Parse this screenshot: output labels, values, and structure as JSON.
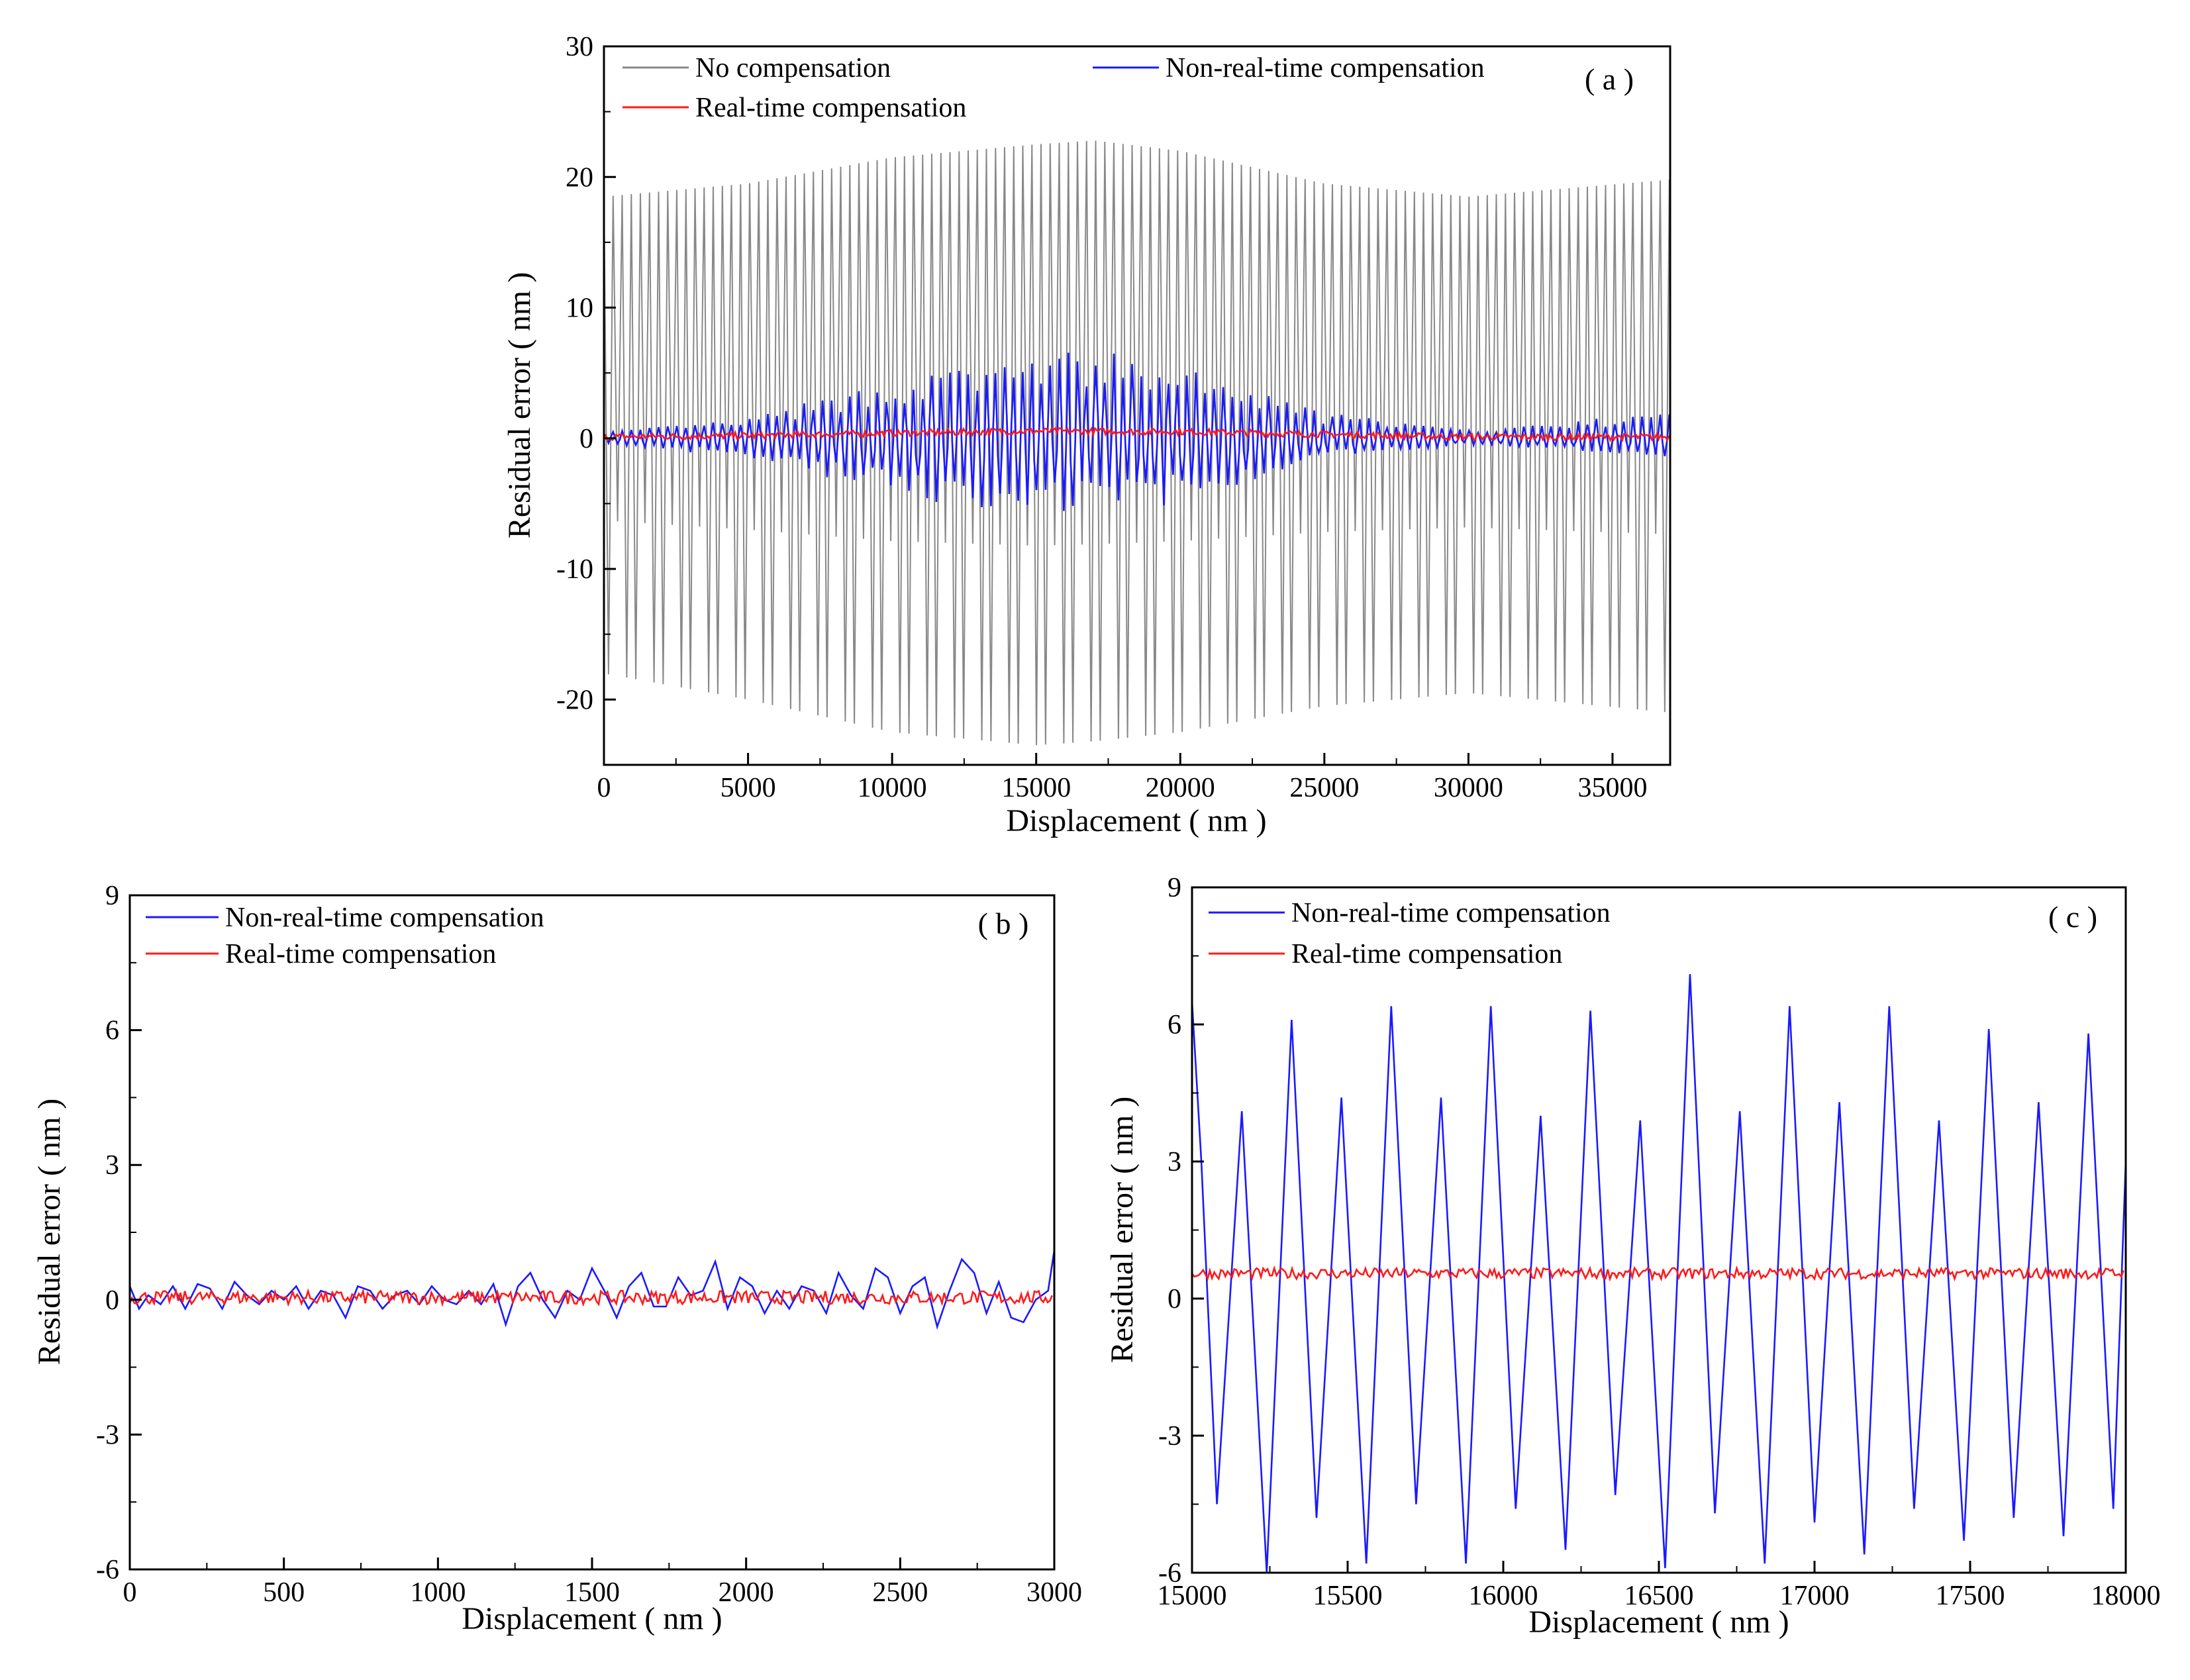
{
  "chart_data": [
    {
      "panel": "( a )",
      "type": "line",
      "xlabel": "Displacement ( nm )",
      "ylabel": "Residual error ( nm )",
      "xlim": [
        0,
        37000
      ],
      "ylim": [
        -25,
        30
      ],
      "xticks": [
        0,
        5000,
        10000,
        15000,
        20000,
        25000,
        30000,
        35000
      ],
      "xtick_labels": [
        "0",
        "5000",
        "10000",
        "15000",
        "20000",
        "25000",
        "30000",
        "35000"
      ],
      "yticks": [
        -20,
        -10,
        0,
        10,
        20,
        30
      ],
      "ytick_labels": [
        "-20",
        "-10",
        "0",
        "10",
        "20",
        "30"
      ],
      "legend": [
        {
          "name": "No compensation",
          "color": "#888888"
        },
        {
          "name": "Non-real-time compensation",
          "color": "#1a1aff"
        },
        {
          "name": "Real-time compensation",
          "color": "#ff1a1a"
        }
      ],
      "series": [
        {
          "name": "No compensation",
          "color": "#888888",
          "period_nm": 316,
          "envelope_x": [
            0,
            5000,
            10000,
            15000,
            17000,
            20000,
            25000,
            30000,
            37000
          ],
          "upper": [
            18.5,
            19.5,
            21.5,
            22.5,
            22.8,
            22.0,
            19.5,
            18.5,
            19.8
          ],
          "lower": [
            -18,
            -20,
            -22.5,
            -23.5,
            -23.2,
            -22.5,
            -20.5,
            -19.5,
            -21
          ]
        },
        {
          "name": "Non-real-time compensation",
          "color": "#1a1aff",
          "period_nm": 316,
          "envelope_x": [
            0,
            5000,
            10000,
            15000,
            17000,
            20000,
            25000,
            30000,
            37000
          ],
          "upper": [
            0.5,
            1.5,
            4.5,
            6.5,
            6.8,
            5.5,
            2.0,
            0.6,
            2.0
          ],
          "lower": [
            -0.5,
            -1.5,
            -4.5,
            -5.8,
            -5.8,
            -5.0,
            -1.5,
            -0.5,
            -1.5
          ]
        },
        {
          "name": "Real-time compensation",
          "color": "#ff1a1a",
          "x": [
            0,
            5000,
            10000,
            15000,
            20000,
            25000,
            30000,
            37000
          ],
          "y": [
            0.1,
            0.2,
            0.4,
            0.55,
            0.5,
            0.3,
            0.1,
            0.1
          ]
        }
      ]
    },
    {
      "panel": "( b )",
      "type": "line",
      "xlabel": "Displacement ( nm )",
      "ylabel": "Residual error ( nm )",
      "xlim": [
        0,
        3000
      ],
      "ylim": [
        -6,
        9
      ],
      "xticks": [
        0,
        500,
        1000,
        1500,
        2000,
        2500,
        3000
      ],
      "xtick_labels": [
        "0",
        "500",
        "1000",
        "1500",
        "2000",
        "2500",
        "3000"
      ],
      "yticks": [
        -6,
        -3,
        0,
        3,
        6,
        9
      ],
      "ytick_labels": [
        "-6",
        "-3",
        "0",
        "3",
        "6",
        "9"
      ],
      "legend": [
        {
          "name": "Non-real-time compensation",
          "color": "#1a1aff"
        },
        {
          "name": "Real-time compensation",
          "color": "#ff1a1a"
        }
      ],
      "series": [
        {
          "name": "Non-real-time compensation",
          "color": "#1a1aff",
          "x": [
            0,
            30,
            60,
            100,
            140,
            180,
            220,
            260,
            300,
            340,
            380,
            420,
            460,
            500,
            540,
            580,
            620,
            660,
            700,
            740,
            780,
            820,
            860,
            900,
            940,
            980,
            1020,
            1060,
            1100,
            1140,
            1180,
            1220,
            1260,
            1300,
            1340,
            1380,
            1420,
            1460,
            1500,
            1540,
            1580,
            1620,
            1660,
            1700,
            1740,
            1780,
            1820,
            1860,
            1900,
            1940,
            1980,
            2020,
            2060,
            2100,
            2140,
            2180,
            2220,
            2260,
            2300,
            2340,
            2380,
            2420,
            2460,
            2500,
            2540,
            2580,
            2620,
            2660,
            2700,
            2740,
            2780,
            2820,
            2860,
            2900,
            2940,
            2980,
            3000
          ],
          "y": [
            0.3,
            -0.2,
            0.1,
            -0.1,
            0.3,
            -0.2,
            0.35,
            0.25,
            -0.2,
            0.4,
            0.1,
            -0.1,
            0.2,
            0.0,
            0.3,
            -0.2,
            0.2,
            0.1,
            -0.4,
            0.3,
            0.2,
            -0.2,
            0.1,
            0.2,
            -0.1,
            0.3,
            0.0,
            -0.1,
            0.2,
            -0.1,
            0.35,
            -0.55,
            0.3,
            0.6,
            0.0,
            -0.4,
            0.2,
            0.0,
            0.7,
            0.2,
            -0.4,
            0.3,
            0.6,
            -0.15,
            -0.15,
            0.5,
            0.1,
            0.2,
            0.85,
            -0.2,
            0.5,
            0.3,
            -0.3,
            0.2,
            -0.2,
            0.3,
            0.2,
            -0.3,
            0.6,
            0.1,
            -0.2,
            0.7,
            0.5,
            -0.3,
            0.3,
            0.5,
            -0.6,
            0.2,
            0.9,
            0.6,
            -0.3,
            0.4,
            -0.4,
            -0.5,
            0.0,
            0.2,
            1.1
          ]
        },
        {
          "name": "Real-time compensation",
          "color": "#ff1a1a",
          "mean": 0.05,
          "noise": 0.15
        }
      ]
    },
    {
      "panel": "( c )",
      "type": "line",
      "xlabel": "Displacement ( nm )",
      "ylabel": "Residual error ( nm )",
      "xlim": [
        15000,
        18000
      ],
      "ylim": [
        -6,
        9
      ],
      "xticks": [
        15000,
        15500,
        16000,
        16500,
        17000,
        17500,
        18000
      ],
      "xtick_labels": [
        "15000",
        "15500",
        "16000",
        "16500",
        "17000",
        "17500",
        "18000"
      ],
      "yticks": [
        -6,
        -3,
        0,
        3,
        6,
        9
      ],
      "ytick_labels": [
        "-6",
        "-3",
        "0",
        "3",
        "6",
        "9"
      ],
      "legend": [
        {
          "name": "Non-real-time compensation",
          "color": "#1a1aff"
        },
        {
          "name": "Real-time compensation",
          "color": "#ff1a1a"
        }
      ],
      "series": [
        {
          "name": "Non-real-time compensation",
          "color": "#1a1aff",
          "x": [
            15000,
            15030,
            15080,
            15160,
            15240,
            15320,
            15400,
            15480,
            15560,
            15640,
            15720,
            15800,
            15880,
            15960,
            16040,
            16120,
            16200,
            16280,
            16360,
            16440,
            16520,
            16600,
            16680,
            16760,
            16840,
            16920,
            17000,
            17080,
            17160,
            17240,
            17320,
            17400,
            17480,
            17560,
            17640,
            17720,
            17800,
            17880,
            17960,
            18000
          ],
          "y": [
            6.5,
            3.0,
            -4.5,
            4.1,
            -6.0,
            6.1,
            -4.8,
            4.4,
            -5.8,
            6.4,
            -4.5,
            4.4,
            -5.8,
            6.4,
            -4.6,
            4.0,
            -5.5,
            6.3,
            -4.3,
            3.9,
            -5.9,
            7.1,
            -4.7,
            4.1,
            -5.8,
            6.4,
            -4.9,
            4.3,
            -5.6,
            6.4,
            -4.6,
            3.9,
            -5.3,
            5.9,
            -4.8,
            4.3,
            -5.2,
            5.8,
            -4.6,
            3.0
          ]
        },
        {
          "name": "Real-time compensation",
          "color": "#ff1a1a",
          "mean": 0.55,
          "noise": 0.12
        }
      ]
    }
  ]
}
